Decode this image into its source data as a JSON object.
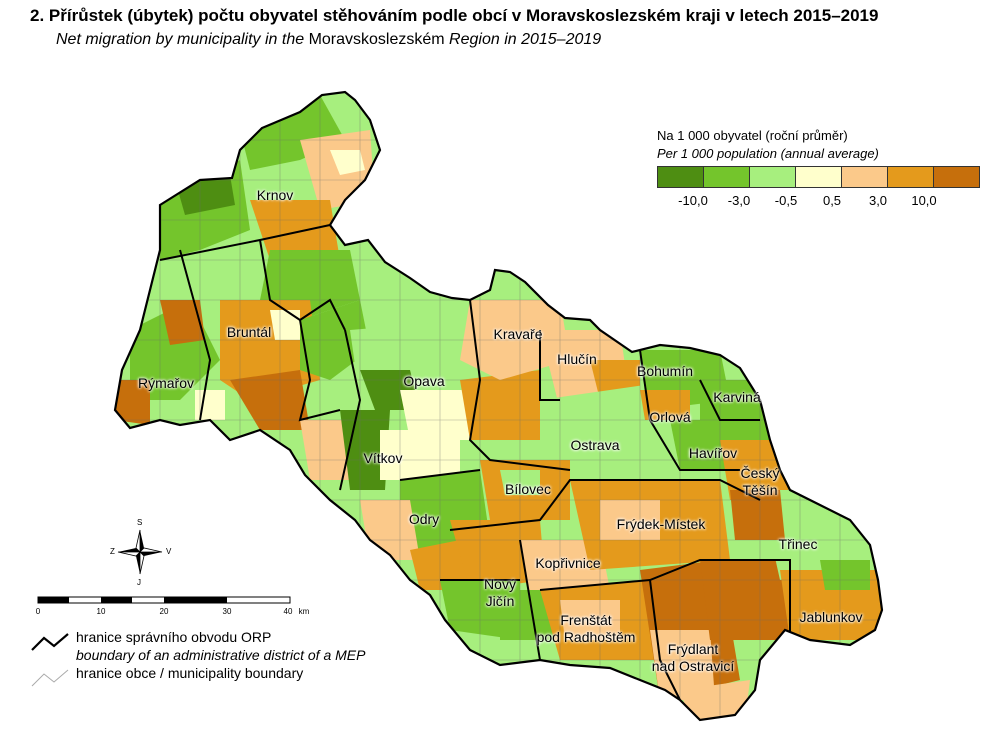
{
  "title": "2. Přírůstek (úbytek) počtu obyvatel stěhováním podle obcí v Moravskoslezském kraji v letech 2015–2019",
  "subtitle_italic1": "Net migration by municipality in the ",
  "subtitle_region": "Moravskoslezském",
  "subtitle_italic2": " Region in 2015–2019",
  "legend": {
    "title": "Na 1 000 obyvatel (roční průměr)",
    "subtitle": "Per 1 000 population (annual average)",
    "colors": [
      "#4e8e12",
      "#74c52c",
      "#a7ef7e",
      "#ffffcc",
      "#fbc98a",
      "#e49a1c",
      "#c66f0c"
    ],
    "ticks": [
      "-10,0",
      "-3,0",
      "-0,5",
      "0,5",
      "3,0",
      "10,0"
    ]
  },
  "places": [
    {
      "name": "Krnov"
    },
    {
      "name": "Bruntál"
    },
    {
      "name": "Rýmařov"
    },
    {
      "name": "Opava"
    },
    {
      "name": "Kravaře"
    },
    {
      "name": "Hlučín"
    },
    {
      "name": "Bohumín"
    },
    {
      "name": "Karviná"
    },
    {
      "name": "Orlová"
    },
    {
      "name": "Ostrava"
    },
    {
      "name": "Havířov"
    },
    {
      "name": "Český\nTěšín"
    },
    {
      "name": "Vítkov"
    },
    {
      "name": "Bílovec"
    },
    {
      "name": "Odry"
    },
    {
      "name": "Frýdek-Místek"
    },
    {
      "name": "Třinec"
    },
    {
      "name": "Kopřivnice"
    },
    {
      "name": "Nový\nJičín"
    },
    {
      "name": "Frenštát\npod Radhoštěm"
    },
    {
      "name": "Frýdlant\nnad Ostravicí"
    },
    {
      "name": "Jablunkov"
    }
  ],
  "compass": {
    "n": "S",
    "s": "J",
    "w": "Z",
    "e": "V"
  },
  "scale": {
    "labels": [
      "0",
      "10",
      "20",
      "30",
      "40"
    ],
    "unit": "km"
  },
  "bottom_legend": {
    "orp_cs": "hranice správního obvodu ORP",
    "orp_en": "boundary of an administrative district of a MEP",
    "obce": "hranice obce / municipality boundary"
  }
}
